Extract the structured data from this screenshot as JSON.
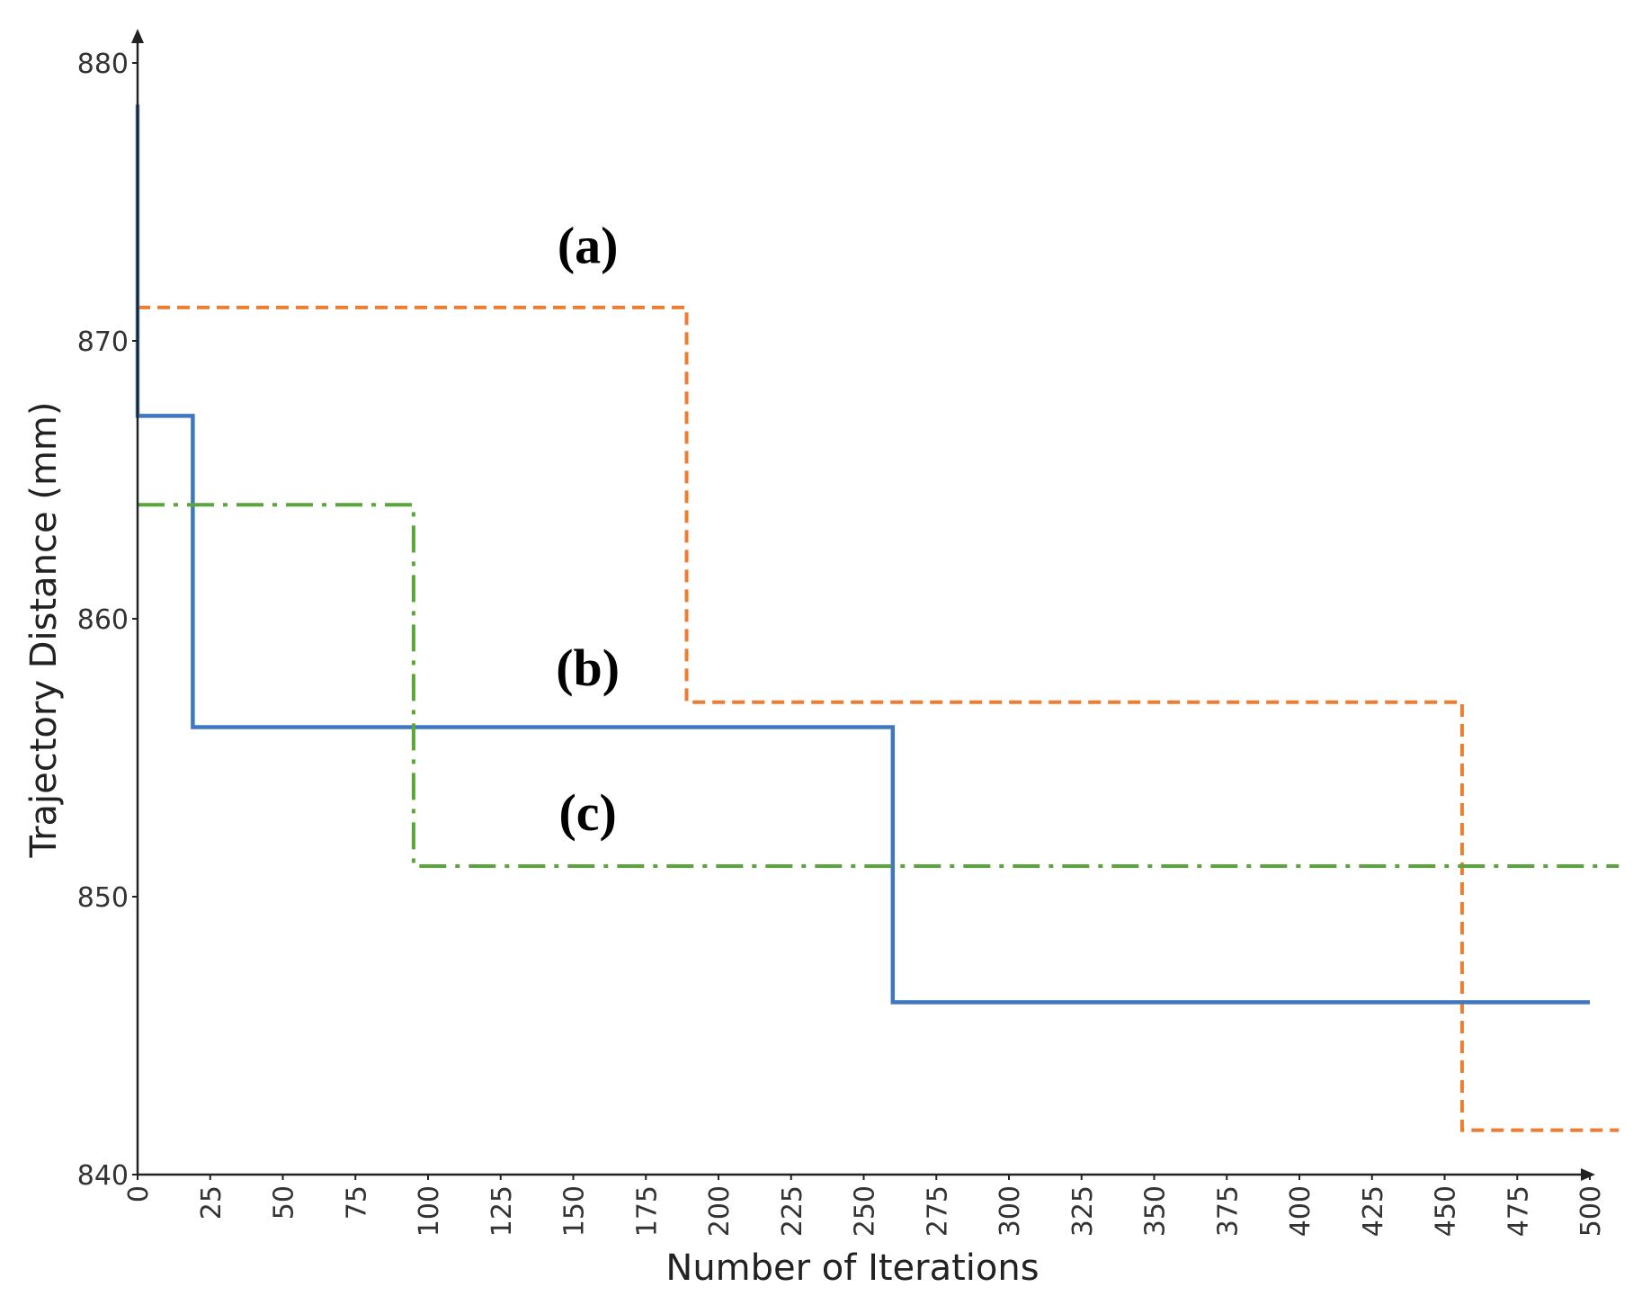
{
  "chart_data": {
    "type": "line",
    "title": "",
    "xlabel": "Number of Iterations",
    "ylabel": "Trajectory Distance (mm)",
    "xlim": [
      0,
      500
    ],
    "ylim": [
      840,
      880
    ],
    "xticks": [
      0,
      25,
      50,
      75,
      100,
      125,
      150,
      175,
      200,
      225,
      250,
      275,
      300,
      325,
      350,
      375,
      400,
      425,
      450,
      475,
      500
    ],
    "yticks": [
      840,
      850,
      860,
      870,
      880
    ],
    "grid": false,
    "legend": "none",
    "series": [
      {
        "name": "(a)",
        "color": "#ed7d31",
        "style": "dashed",
        "x": [
          0,
          189,
          189,
          456,
          456,
          510
        ],
        "y": [
          871.2,
          871.2,
          857.0,
          857.0,
          841.6,
          841.6
        ]
      },
      {
        "name": "(b)",
        "color": "#3f78c0",
        "style": "solid",
        "x": [
          0,
          0,
          19,
          19,
          260,
          260,
          500
        ],
        "y": [
          878.5,
          867.3,
          867.3,
          856.1,
          856.1,
          846.2,
          846.2
        ]
      },
      {
        "name": "(c)",
        "color": "#5aa63c",
        "style": "dashdot",
        "x": [
          0,
          95,
          95,
          510
        ],
        "y": [
          864.1,
          864.1,
          851.1,
          851.1
        ]
      }
    ],
    "annotations": [
      {
        "text": "(a)",
        "series": "(a)",
        "x": 155,
        "y": 872.8
      },
      {
        "text": "(b)",
        "series": "(b)",
        "x": 155,
        "y": 857.6
      },
      {
        "text": "(c)",
        "series": "(c)",
        "x": 155,
        "y": 852.4
      }
    ]
  }
}
